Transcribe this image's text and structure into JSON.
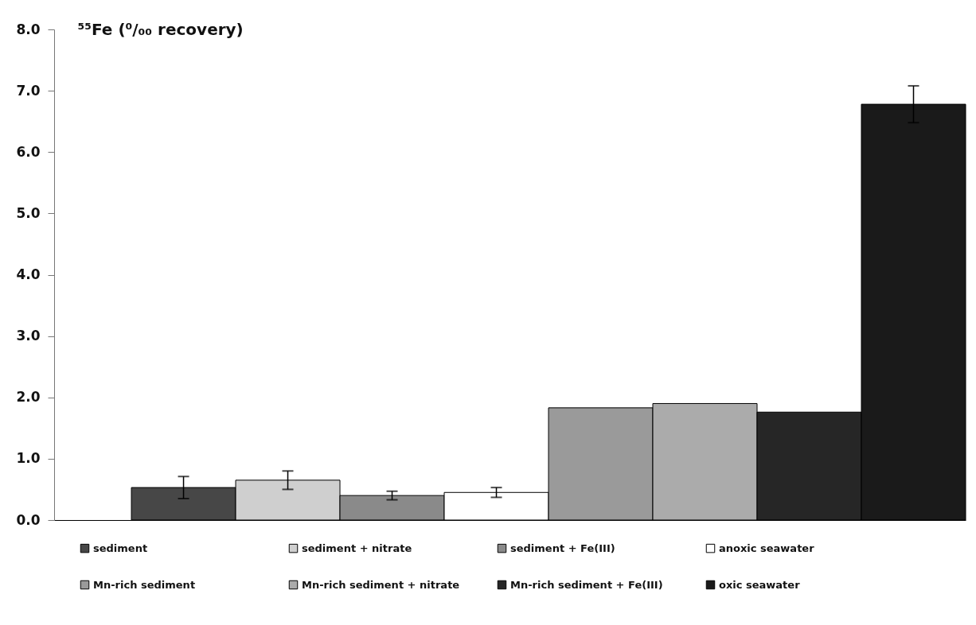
{
  "chart_data": {
    "type": "bar",
    "ylabel": "⁵⁵Fe (⁰/₀₀ recovery)",
    "categories": [
      null
    ],
    "series": [
      {
        "name": "sediment",
        "color": "#474747",
        "values": [
          0.53
        ],
        "errors": [
          0.18
        ]
      },
      {
        "name": "sediment + nitrate",
        "color": "#cfcfcf",
        "values": [
          0.65
        ],
        "errors": [
          0.15
        ]
      },
      {
        "name": "sediment + Fe(III)",
        "color": "#8a8a8a",
        "values": [
          0.4
        ],
        "errors": [
          0.07
        ]
      },
      {
        "name": "anoxic seawater",
        "color": "#ffffff",
        "values": [
          0.45
        ],
        "errors": [
          0.08
        ]
      },
      {
        "name": "Mn-rich sediment",
        "color": "#9a9a9a",
        "values": [
          1.83
        ]
      },
      {
        "name": "Mn-rich sediment + nitrate",
        "color": "#ababab",
        "values": [
          1.9
        ]
      },
      {
        "name": "Mn-rich sediment + Fe(III)",
        "color": "#262626",
        "values": [
          1.76
        ]
      },
      {
        "name": "oxic seawater",
        "color": "#1a1a1a",
        "values": [
          6.78
        ],
        "errors": [
          0.3
        ]
      }
    ],
    "ylim": [
      0,
      8
    ],
    "yticks": [
      {
        "value": 0,
        "label": "0.0"
      },
      {
        "value": 1,
        "label": "1.0"
      },
      {
        "value": 2,
        "label": "2.0"
      },
      {
        "value": 3,
        "label": "3.0"
      },
      {
        "value": 4,
        "label": "4.0"
      },
      {
        "value": 5,
        "label": "5.0"
      },
      {
        "value": 6,
        "label": "6.0"
      },
      {
        "value": 7,
        "label": "7.0"
      },
      {
        "value": 8,
        "label": "8.0"
      }
    ],
    "tick_labels": "y",
    "legend": "bottom"
  }
}
